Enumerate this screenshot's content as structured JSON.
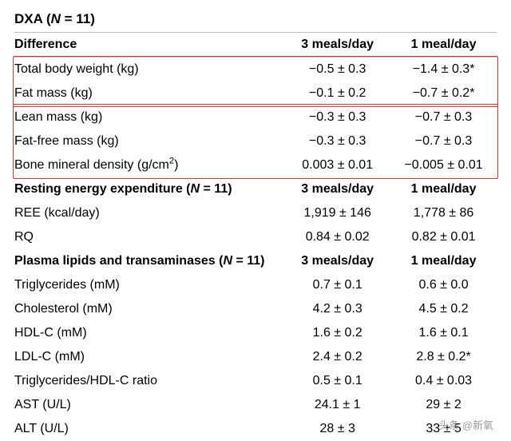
{
  "title_prefix": "DXA (",
  "title_N": "N",
  "title_eq": " = 11)",
  "highlight_color": "#d03a2a",
  "sections": {
    "dxa": {
      "header": {
        "label": "Difference",
        "c1": "3 meals/day",
        "c2": "1 meal/day"
      },
      "rows": [
        {
          "label": "Total body weight (kg)",
          "c1": "−0.5 ± 0.3",
          "c2": "−1.4 ± 0.3*"
        },
        {
          "label": "Fat mass (kg)",
          "c1": "−0.1 ± 0.2",
          "c2": "−0.7 ± 0.2*"
        },
        {
          "label": "Lean mass (kg)",
          "c1": "−0.3 ± 0.3",
          "c2": "−0.7 ± 0.3"
        },
        {
          "label": "Fat-free mass (kg)",
          "c1": "−0.3 ± 0.3",
          "c2": "−0.7 ± 0.3"
        },
        {
          "label_html": "Bone mineral density (g/cm<sup>2</sup>)",
          "c1": "0.003 ± 0.01",
          "c2": "−0.005 ± 0.01"
        }
      ]
    },
    "ree": {
      "header_html": "Resting energy expenditure (<span class=\"italic\">N</span> = 11)",
      "c1": "3 meals/day",
      "c2": "1 meal/day",
      "rows": [
        {
          "label": "REE (kcal/day)",
          "c1": "1,919 ± 146",
          "c2": "1,778 ± 86"
        },
        {
          "label": "RQ",
          "c1": "0.84 ± 0.02",
          "c2": "0.82 ± 0.01"
        }
      ]
    },
    "plasma": {
      "header_html": "Plasma lipids and transaminases (<span class=\"italic\">N</span> = 11)",
      "c1": "3 meals/day",
      "c2": "1 meal/day",
      "rows": [
        {
          "label": "Triglycerides (mM)",
          "c1": "0.7 ± 0.1",
          "c2": "0.6 ± 0.0"
        },
        {
          "label": "Cholesterol (mM)",
          "c1": "4.2 ± 0.3",
          "c2": "4.5 ± 0.2"
        },
        {
          "label": "HDL-C (mM)",
          "c1": "1.6 ± 0.2",
          "c2": "1.6 ± 0.1"
        },
        {
          "label": "LDL-C (mM)",
          "c1": "2.4 ± 0.2",
          "c2": "2.8 ± 0.2*"
        },
        {
          "label": "Triglycerides/HDL-C ratio",
          "c1": "0.5 ± 0.1",
          "c2": "0.4 ± 0.03"
        },
        {
          "label": "AST (U/L)",
          "c1": "24.1 ± 1",
          "c2": "29 ± 2"
        },
        {
          "label": "ALT (U/L)",
          "c1": "28 ± 3",
          "c2": "33 ± 5"
        }
      ]
    }
  },
  "watermark": "头条 @新氧"
}
